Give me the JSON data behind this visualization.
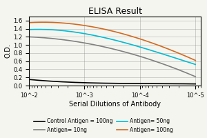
{
  "title": "ELISA Result",
  "ylabel": "O.D.",
  "xlabel": "Serial Dilutions of Antibody",
  "x_values": [
    0.01,
    0.001,
    0.0001,
    1e-05
  ],
  "lines": [
    {
      "label": "Control Antigen = 100ng",
      "color": "#000000",
      "y_values": [
        0.15,
        0.07,
        0.05,
        0.04
      ]
    },
    {
      "label": "Antigen= 10ng",
      "color": "#808080",
      "y_values": [
        1.2,
        1.05,
        0.72,
        0.22
      ]
    },
    {
      "label": "Antigen= 50ng",
      "color": "#00bcd4",
      "y_values": [
        1.38,
        1.28,
        0.95,
        0.52
      ]
    },
    {
      "label": "Antigen= 100ng",
      "color": "#d2691e",
      "y_values": [
        1.55,
        1.48,
        1.15,
        0.62
      ]
    }
  ],
  "ylim": [
    0,
    1.7
  ],
  "yticks": [
    0,
    0.2,
    0.4,
    0.6,
    0.8,
    1.0,
    1.2,
    1.4,
    1.6
  ],
  "bg_color": "#f5f5f0",
  "title_fontsize": 9,
  "label_fontsize": 7,
  "tick_fontsize": 6,
  "legend_fontsize": 5.5
}
